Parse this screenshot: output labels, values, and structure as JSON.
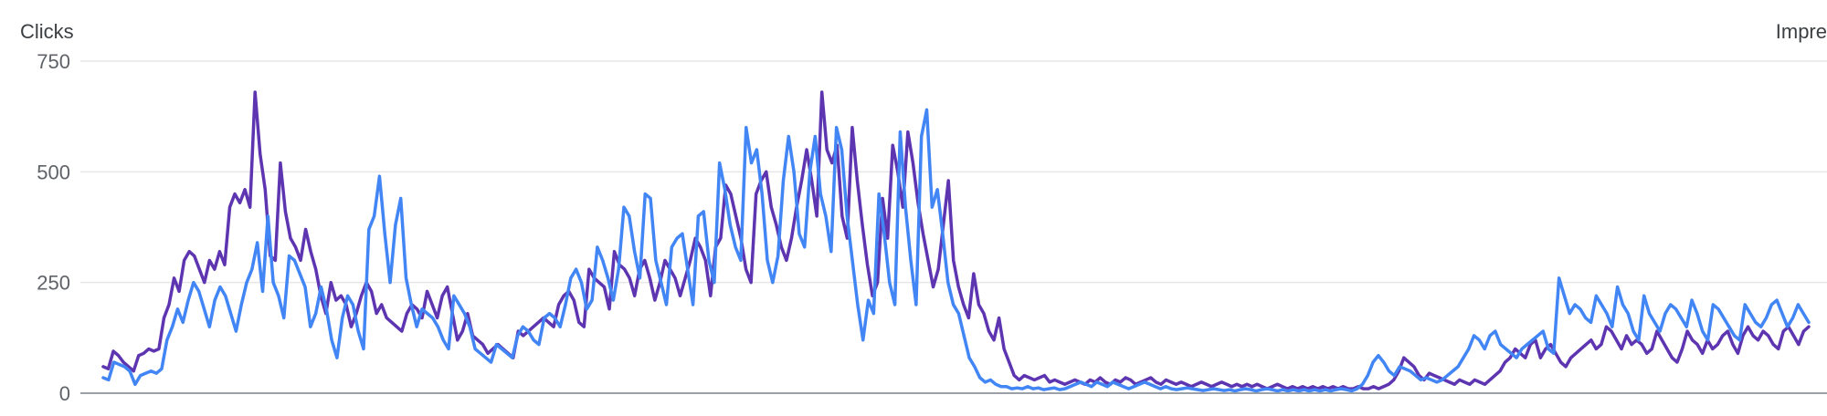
{
  "chart_data": {
    "type": "line",
    "title": "",
    "ylabel": "Clicks",
    "y2label": "Impre",
    "ylim": [
      0,
      750
    ],
    "yticks": [
      0,
      250,
      500,
      750
    ],
    "grid": true,
    "legend": "none",
    "colors": {
      "clicks": "#5e35b1",
      "impressions": "#4285f4",
      "grid": "#e6e6e6",
      "baseline": "#9aa0a6",
      "text": "#5f6368"
    },
    "series": [
      {
        "key": "clicks",
        "values": [
          60,
          55,
          95,
          85,
          70,
          60,
          50,
          85,
          90,
          100,
          95,
          100,
          170,
          200,
          260,
          230,
          300,
          320,
          310,
          280,
          250,
          300,
          280,
          320,
          290,
          420,
          450,
          430,
          460,
          420,
          680,
          540,
          460,
          310,
          300,
          520,
          410,
          350,
          330,
          300,
          370,
          320,
          280,
          220,
          180,
          250,
          210,
          220,
          200,
          150,
          180,
          220,
          250,
          230,
          180,
          200,
          170,
          160,
          150,
          140,
          180,
          200,
          190,
          170,
          230,
          200,
          170,
          220,
          240,
          180,
          120,
          140,
          180,
          130,
          120,
          110,
          90,
          100,
          110,
          100,
          90,
          80,
          140,
          130,
          140,
          150,
          160,
          170,
          160,
          150,
          200,
          220,
          230,
          210,
          160,
          150,
          280,
          260,
          250,
          240,
          190,
          320,
          290,
          280,
          260,
          220,
          280,
          300,
          260,
          210,
          250,
          300,
          280,
          260,
          220,
          260,
          300,
          350,
          330,
          300,
          220,
          330,
          350,
          470,
          450,
          400,
          350,
          280,
          250,
          450,
          480,
          500,
          420,
          380,
          330,
          300,
          350,
          420,
          480,
          550,
          480,
          400,
          680,
          550,
          520,
          560,
          400,
          350,
          600,
          480,
          380,
          290,
          220,
          250,
          440,
          350,
          560,
          500,
          420,
          590,
          520,
          430,
          360,
          300,
          240,
          280,
          380,
          480,
          300,
          240,
          200,
          170,
          270,
          200,
          180,
          140,
          120,
          170,
          100,
          70,
          40,
          30,
          40,
          35,
          30,
          35,
          40,
          25,
          30,
          25,
          20,
          25,
          30,
          25,
          20,
          30,
          25,
          35,
          25,
          20,
          30,
          25,
          35,
          30,
          20,
          25,
          30,
          35,
          25,
          20,
          30,
          25,
          20,
          25,
          20,
          15,
          20,
          25,
          20,
          15,
          20,
          25,
          20,
          15,
          20,
          15,
          20,
          15,
          20,
          15,
          10,
          15,
          20,
          15,
          10,
          15,
          10,
          15,
          10,
          15,
          10,
          15,
          10,
          15,
          10,
          15,
          10,
          10,
          15,
          10,
          10,
          15,
          10,
          15,
          20,
          30,
          50,
          80,
          70,
          60,
          40,
          30,
          45,
          40,
          35,
          30,
          25,
          20,
          30,
          25,
          20,
          30,
          25,
          20,
          30,
          40,
          50,
          70,
          80,
          100,
          90,
          80,
          110,
          120,
          80,
          100,
          110,
          90,
          70,
          60,
          80,
          90,
          100,
          110,
          120,
          100,
          110,
          150,
          140,
          120,
          100,
          130,
          110,
          120,
          110,
          90,
          100,
          140,
          120,
          100,
          80,
          70,
          100,
          140,
          120,
          110,
          90,
          120,
          100,
          110,
          130,
          140,
          110,
          90,
          130,
          150,
          130,
          120,
          140,
          130,
          110,
          100,
          140,
          150,
          130,
          110,
          140,
          150
        ]
      },
      {
        "key": "impressions",
        "values": [
          35,
          30,
          70,
          65,
          60,
          50,
          20,
          40,
          45,
          50,
          45,
          55,
          120,
          150,
          190,
          160,
          210,
          250,
          230,
          190,
          150,
          210,
          240,
          220,
          180,
          140,
          200,
          250,
          280,
          340,
          230,
          400,
          250,
          220,
          170,
          310,
          300,
          270,
          240,
          150,
          180,
          240,
          190,
          120,
          80,
          170,
          220,
          200,
          140,
          100,
          370,
          400,
          490,
          360,
          250,
          380,
          440,
          260,
          200,
          150,
          190,
          180,
          170,
          150,
          120,
          100,
          220,
          200,
          180,
          150,
          100,
          90,
          80,
          70,
          110,
          100,
          90,
          80,
          130,
          150,
          140,
          120,
          110,
          170,
          180,
          170,
          150,
          200,
          260,
          280,
          250,
          190,
          210,
          330,
          300,
          260,
          210,
          280,
          420,
          400,
          320,
          260,
          450,
          440,
          300,
          250,
          200,
          330,
          350,
          360,
          280,
          200,
          400,
          410,
          300,
          250,
          520,
          460,
          380,
          330,
          300,
          600,
          520,
          550,
          450,
          300,
          250,
          310,
          480,
          580,
          500,
          360,
          330,
          500,
          580,
          450,
          400,
          320,
          600,
          550,
          400,
          300,
          200,
          120,
          210,
          180,
          450,
          360,
          250,
          200,
          590,
          420,
          300,
          200,
          580,
          640,
          420,
          460,
          360,
          250,
          200,
          180,
          130,
          80,
          60,
          35,
          25,
          30,
          20,
          15,
          15,
          10,
          12,
          10,
          15,
          10,
          12,
          8,
          10,
          12,
          8,
          10,
          15,
          20,
          25,
          20,
          15,
          25,
          20,
          15,
          25,
          20,
          15,
          10,
          15,
          20,
          25,
          20,
          15,
          10,
          15,
          10,
          8,
          10,
          12,
          10,
          8,
          6,
          8,
          10,
          8,
          6,
          8,
          5,
          8,
          10,
          8,
          5,
          8,
          10,
          8,
          5,
          8,
          5,
          8,
          5,
          8,
          5,
          8,
          5,
          8,
          5,
          8,
          10,
          8,
          5,
          10,
          20,
          40,
          70,
          85,
          70,
          50,
          40,
          60,
          55,
          50,
          40,
          30,
          35,
          30,
          25,
          30,
          40,
          50,
          60,
          80,
          100,
          130,
          120,
          100,
          130,
          140,
          110,
          100,
          90,
          80,
          100,
          110,
          120,
          130,
          140,
          100,
          90,
          260,
          220,
          180,
          200,
          190,
          170,
          160,
          220,
          200,
          180,
          150,
          240,
          200,
          180,
          140,
          120,
          220,
          180,
          160,
          140,
          180,
          200,
          190,
          170,
          150,
          210,
          180,
          140,
          120,
          200,
          190,
          170,
          150,
          130,
          120,
          200,
          180,
          160,
          150,
          170,
          200,
          210,
          180,
          150,
          170,
          200,
          180,
          160
        ]
      }
    ]
  }
}
